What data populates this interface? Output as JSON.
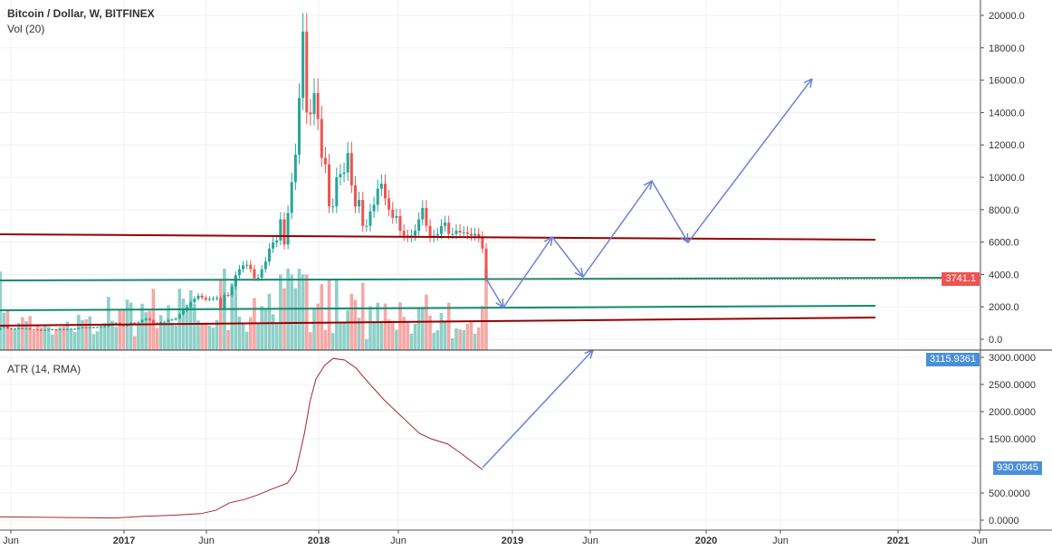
{
  "header": {
    "symbol_title": "Bitcoin / Dollar, W, BITFINEX",
    "volume_label": "Vol (20)",
    "atr_label": "ATR (14, RMA)"
  },
  "price_axis": {
    "ticks": [
      "20000.0",
      "18000.0",
      "16000.0",
      "14000.0",
      "12000.0",
      "10000.0",
      "8000.0",
      "6000.0",
      "4000.0",
      "2000.0",
      "0.0"
    ],
    "last_price": "3741.1",
    "last_price_color": "#ef5350"
  },
  "atr_axis": {
    "ticks": [
      "3000.0000",
      "2500.0000",
      "2000.0000",
      "1500.0000",
      "500.0000",
      "0.0000"
    ],
    "last_value": "930.0845",
    "top_tag": "3115.9361",
    "tag_color": "#4a90d9"
  },
  "time_axis": {
    "ticks": [
      "Jun",
      "2017",
      "Jun",
      "2018",
      "Jun",
      "2019",
      "Jun",
      "2020",
      "Jun",
      "2021",
      "Jun"
    ]
  },
  "colors": {
    "up": "#26a69a",
    "down": "#ef5350",
    "support_line": "#138a6e",
    "resistance_line": "#990000",
    "projection": "#6b82d6",
    "atr_line": "#a52a2a"
  },
  "chart_data": [
    {
      "type": "candlestick",
      "title": "Bitcoin / Dollar, W, BITFINEX",
      "ylim": [
        0,
        20000
      ],
      "weekly_closes": [
        460,
        455,
        530,
        580,
        720,
        760,
        670,
        650,
        660,
        680,
        650,
        660,
        600,
        590,
        575,
        570,
        575,
        605,
        610,
        600,
        610,
        605,
        615,
        640,
        650,
        700,
        730,
        705,
        730,
        740,
        750,
        770,
        790,
        890,
        960,
        1000,
        900,
        820,
        920,
        1010,
        1000,
        1050,
        1180,
        1270,
        1180,
        1000,
        960,
        1040,
        1080,
        1190,
        1210,
        1280,
        1540,
        1770,
        1970,
        2290,
        2500,
        2690,
        2560,
        2450,
        2500,
        2500,
        2550,
        1930,
        2740,
        2720,
        3250,
        3950,
        4330,
        4560,
        4600,
        4330,
        3770,
        3800,
        4320,
        4800,
        5600,
        5980,
        6100,
        7400,
        5850,
        7800,
        9700,
        11400,
        14900,
        19000,
        14000,
        13900,
        15200,
        13600,
        11200,
        10800,
        8200,
        8200,
        10000,
        10200,
        10300,
        11500,
        9500,
        8200,
        8600,
        7000,
        7000,
        7900,
        8300,
        9300,
        9600,
        8700,
        8000,
        7500,
        7600,
        6700,
        6400,
        6300,
        6400,
        6700,
        7400,
        8100,
        7000,
        6300,
        6400,
        6500,
        7000,
        7200,
        6500,
        6500,
        6700,
        6600,
        6600,
        6500,
        6400,
        6500,
        6300,
        5600,
        3741
      ]
    },
    {
      "type": "line",
      "title": "ATR (14, RMA)",
      "ylim": [
        0,
        3100
      ],
      "points_by_week": [
        [
          0,
          60
        ],
        [
          20,
          50
        ],
        [
          40,
          40
        ],
        [
          50,
          70
        ],
        [
          60,
          90
        ],
        [
          70,
          120
        ],
        [
          75,
          180
        ],
        [
          80,
          320
        ],
        [
          85,
          380
        ],
        [
          90,
          470
        ],
        [
          95,
          580
        ],
        [
          100,
          680
        ],
        [
          103,
          900
        ],
        [
          106,
          1600
        ],
        [
          108,
          2200
        ],
        [
          110,
          2600
        ],
        [
          113,
          2850
        ],
        [
          116,
          2980
        ],
        [
          120,
          2950
        ],
        [
          124,
          2800
        ],
        [
          128,
          2550
        ],
        [
          134,
          2200
        ],
        [
          140,
          1900
        ],
        [
          146,
          1600
        ],
        [
          150,
          1500
        ],
        [
          156,
          1400
        ],
        [
          160,
          1250
        ],
        [
          165,
          1050
        ],
        [
          168,
          930
        ]
      ]
    }
  ]
}
